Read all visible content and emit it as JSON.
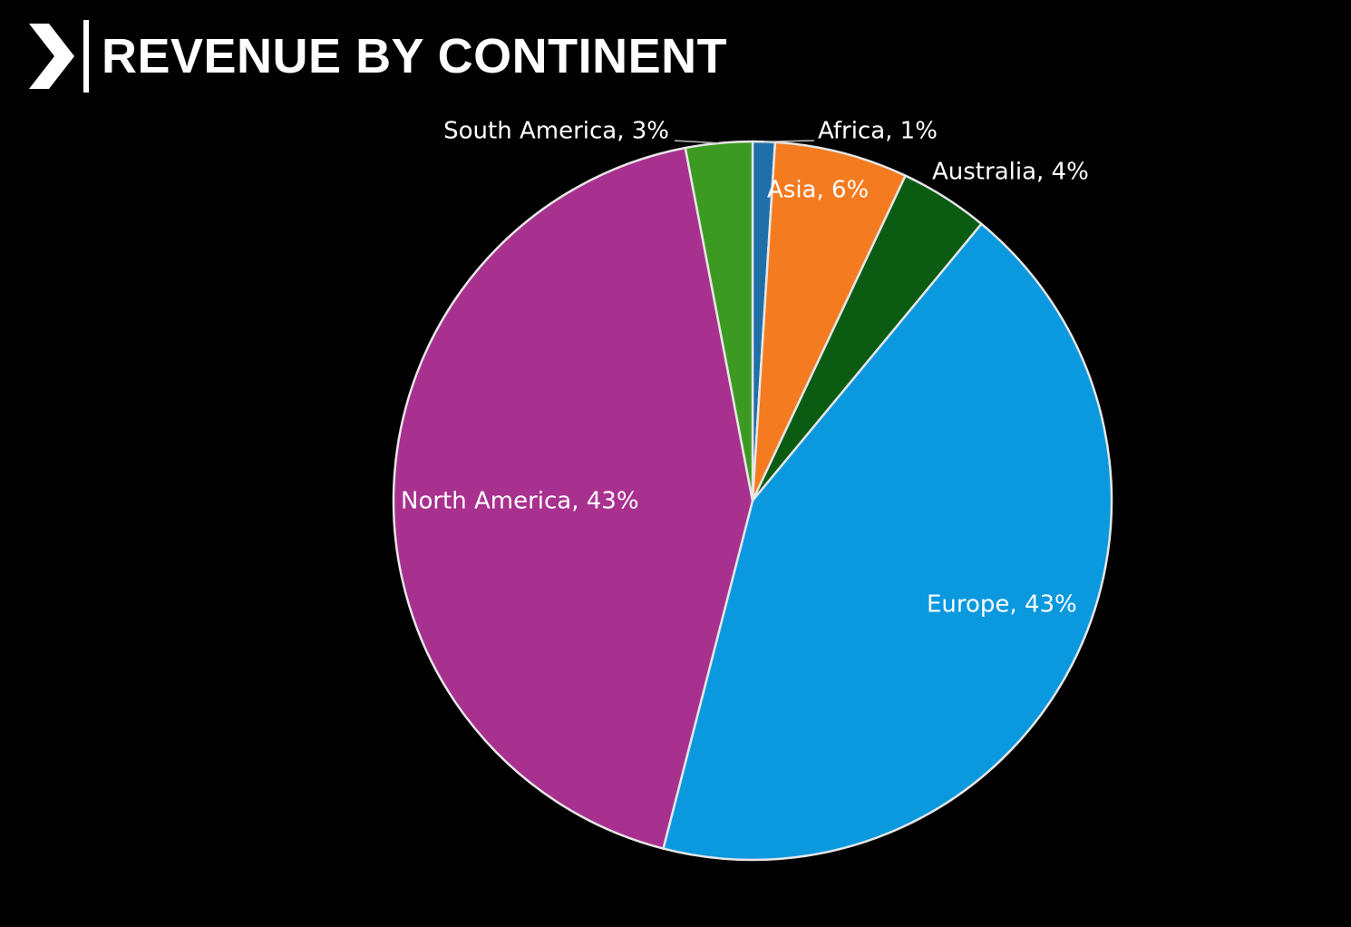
{
  "header": {
    "title": "REVENUE BY CONTINENT",
    "logo_icon": "chevron-right-icon"
  },
  "colors": {
    "background": "#000000",
    "slice_border": "#e6e6e6",
    "text": "#ffffff"
  },
  "chart_data": {
    "type": "pie",
    "title": "REVENUE BY CONTINENT",
    "legend": "none",
    "slices": [
      {
        "name": "Africa",
        "value": 1,
        "label": "Africa, 1%",
        "color": "#1f6fa8",
        "label_color": "#ffffff"
      },
      {
        "name": "Asia",
        "value": 6,
        "label": "Asia, 6%",
        "color": "#f47b20",
        "label_color": "#ffffff"
      },
      {
        "name": "Australia",
        "value": 4,
        "label": "Australia, 4%",
        "color": "#0b5b13",
        "label_color": "#ffffff"
      },
      {
        "name": "Europe",
        "value": 43,
        "label": "Europe, 43%",
        "color": "#0a98df",
        "label_color": "#ffffff"
      },
      {
        "name": "North America",
        "value": 43,
        "label": "North America, 43%",
        "color": "#a8318f",
        "label_color": "#ffffff"
      },
      {
        "name": "South America",
        "value": 3,
        "label": "South America, 3%",
        "color": "#3c9a22",
        "label_color": "#ffffff"
      }
    ]
  }
}
